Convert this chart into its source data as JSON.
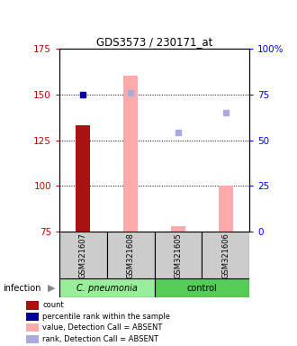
{
  "title": "GDS3573 / 230171_at",
  "samples": [
    "GSM321607",
    "GSM321608",
    "GSM321605",
    "GSM321606"
  ],
  "ylim_left": [
    75,
    175
  ],
  "ylim_right": [
    0,
    100
  ],
  "yticks_left": [
    75,
    100,
    125,
    150,
    175
  ],
  "yticks_right": [
    0,
    25,
    50,
    75,
    100
  ],
  "ytick_labels_right": [
    "0",
    "25",
    "50",
    "75",
    "100%"
  ],
  "bar_color_red": "#aa1111",
  "bar_color_pink": "#ffaaaa",
  "dot_color_blue": "#000099",
  "dot_color_lightblue": "#aaaadd",
  "count_values": [
    133,
    null,
    null,
    null
  ],
  "value_absent_bars": [
    null,
    160,
    78,
    100
  ],
  "rank_sample_pct": [
    75,
    null,
    null,
    null
  ],
  "rank_absent_pct": [
    null,
    76,
    54,
    65
  ],
  "legend_items": [
    {
      "color": "#aa1111",
      "label": "count"
    },
    {
      "color": "#000099",
      "label": "percentile rank within the sample"
    },
    {
      "color": "#ffaaaa",
      "label": "value, Detection Call = ABSENT"
    },
    {
      "color": "#aaaadd",
      "label": "rank, Detection Call = ABSENT"
    }
  ],
  "sample_box_color": "#cccccc",
  "cpneumonia_color": "#99ee99",
  "control_color": "#55cc55"
}
